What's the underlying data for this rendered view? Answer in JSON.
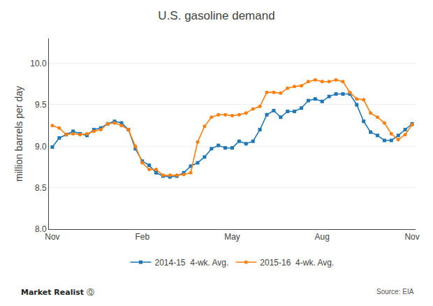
{
  "chart_data": {
    "type": "line",
    "title": "U.S. gasoline demand",
    "ylabel": "million barrels per day",
    "categories": [
      "Nov",
      null,
      null,
      null,
      null,
      null,
      null,
      null,
      null,
      null,
      null,
      null,
      null,
      "Feb",
      null,
      null,
      null,
      null,
      null,
      null,
      null,
      null,
      null,
      null,
      null,
      null,
      "May",
      null,
      null,
      null,
      null,
      null,
      null,
      null,
      null,
      null,
      null,
      null,
      null,
      "Aug",
      null,
      null,
      null,
      null,
      null,
      null,
      null,
      null,
      null,
      null,
      null,
      null,
      "Nov"
    ],
    "series": [
      {
        "name": "2014-15  4-wk. Avg.",
        "marker": "square",
        "values": [
          8.99,
          9.1,
          9.14,
          9.18,
          9.15,
          9.13,
          9.2,
          9.22,
          9.27,
          9.3,
          9.28,
          9.2,
          8.97,
          8.82,
          8.77,
          8.68,
          8.64,
          8.63,
          8.64,
          8.68,
          8.76,
          8.8,
          8.87,
          8.97,
          9.01,
          8.98,
          8.98,
          9.06,
          9.03,
          9.06,
          9.2,
          9.38,
          9.43,
          9.35,
          9.42,
          9.42,
          9.46,
          9.55,
          9.57,
          9.54,
          9.6,
          9.63,
          9.63,
          9.63,
          9.5,
          9.3,
          9.17,
          9.13,
          9.07,
          9.07,
          9.13,
          9.2,
          9.27
        ]
      },
      {
        "name": "2015-16  4-wk. Avg.",
        "marker": "circle",
        "values": [
          9.25,
          9.22,
          9.14,
          9.15,
          9.14,
          9.15,
          9.18,
          9.2,
          9.27,
          9.28,
          9.25,
          9.2,
          9.0,
          8.8,
          8.72,
          8.72,
          8.65,
          8.65,
          8.65,
          8.66,
          8.68,
          9.05,
          9.24,
          9.35,
          9.38,
          9.38,
          9.37,
          9.38,
          9.4,
          9.45,
          9.48,
          9.65,
          9.65,
          9.64,
          9.7,
          9.72,
          9.73,
          9.78,
          9.8,
          9.78,
          9.78,
          9.8,
          9.78,
          9.65,
          9.57,
          9.56,
          9.4,
          9.35,
          9.28,
          9.15,
          9.08,
          9.14,
          9.26
        ]
      }
    ],
    "ylim": [
      8.0,
      10.3
    ],
    "yticks": [
      {
        "value": 8.0,
        "label": "8.0"
      },
      8.5,
      {
        "value": 9.0,
        "label": "9.0"
      },
      9.5,
      {
        "value": 10.0,
        "label": "10.0"
      }
    ],
    "grid": true,
    "legend": "bottom",
    "annotations": [
      "Market Realist",
      "Ⓠ",
      "Source: EIA"
    ]
  }
}
